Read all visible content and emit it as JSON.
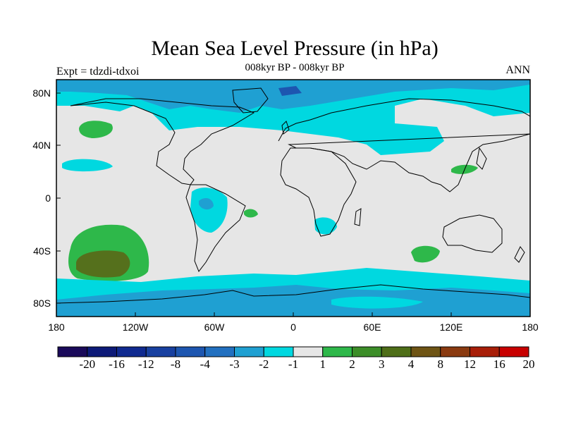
{
  "title": "Mean Sea Level Pressure (in hPa)",
  "subtitle": "008kyr BP - 008kyr BP",
  "left_label": "Expt = tdzdi-tdxoi",
  "right_label": "ANN",
  "axes": {
    "x_ticks": [
      "180",
      "120W",
      "60W",
      "0",
      "60E",
      "120E",
      "180"
    ],
    "y_ticks": [
      "80N",
      "40N",
      "0",
      "40S",
      "80S"
    ]
  },
  "colorbar": {
    "labels": [
      "-20",
      "-16",
      "-12",
      "-8",
      "-4",
      "-3",
      "-2",
      "-1",
      "1",
      "2",
      "3",
      "4",
      "8",
      "12",
      "16",
      "20"
    ],
    "colors": [
      "#1a0a5a",
      "#0d1a78",
      "#102a90",
      "#1840a0",
      "#1d56b0",
      "#2270c0",
      "#1fa0d2",
      "#00d8e0",
      "#e6e6e6",
      "#2eb84a",
      "#3c8e28",
      "#4e6e18",
      "#6e5414",
      "#8a3a10",
      "#a81e08",
      "#c80000"
    ]
  },
  "map": {
    "background": "#e6e6e6",
    "palette": {
      "cyan": "#00d8e0",
      "blue": "#1fa0d2",
      "green": "#2eb84a",
      "olive": "#55701c"
    }
  }
}
